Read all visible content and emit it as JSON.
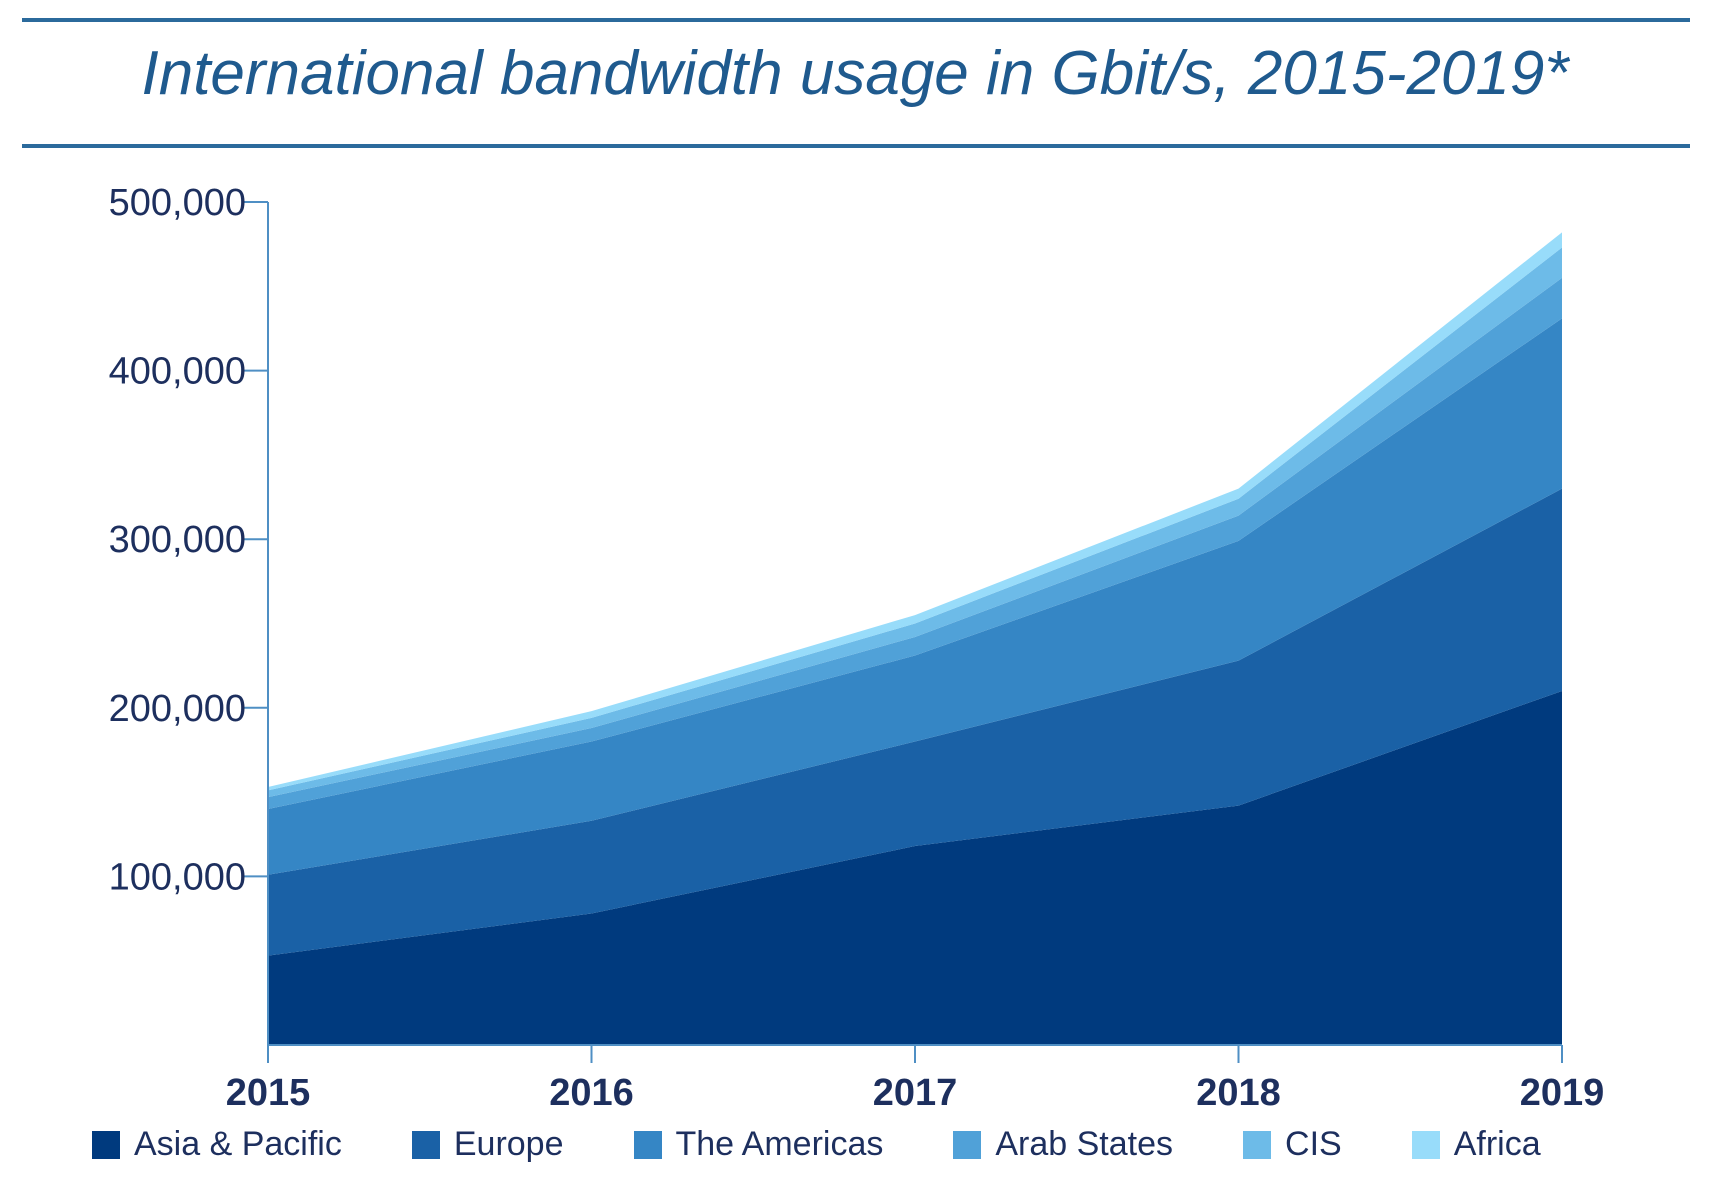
{
  "title": "International bandwidth usage in Gbit/s, 2015-2019*",
  "chart_data": {
    "type": "area",
    "stacked": true,
    "title": "International bandwidth usage in Gbit/s, 2015-2019*",
    "xlabel": "",
    "ylabel": "",
    "categories": [
      "2015",
      "2016",
      "2017",
      "2018",
      "2019"
    ],
    "y_ticks": [
      100000,
      200000,
      300000,
      400000,
      500000
    ],
    "y_tick_labels": [
      "100,000",
      "200,000",
      "300,000",
      "400,000",
      "500,000"
    ],
    "ylim": [
      0,
      500000
    ],
    "grid": false,
    "legend_position": "bottom",
    "series": [
      {
        "name": "Asia & Pacific",
        "color": "#003a7e",
        "values": [
          53000,
          78000,
          118000,
          142000,
          210000
        ]
      },
      {
        "name": "Europe",
        "color": "#1a61a6",
        "values": [
          48000,
          55000,
          62000,
          86000,
          120000
        ]
      },
      {
        "name": "The Americas",
        "color": "#3586c5",
        "values": [
          39000,
          47000,
          51000,
          71000,
          101000
        ]
      },
      {
        "name": "Arab States",
        "color": "#50a1d8",
        "values": [
          7000,
          8000,
          11000,
          15000,
          24000
        ]
      },
      {
        "name": "CIS",
        "color": "#6dbbe8",
        "values": [
          4000,
          6000,
          8000,
          10000,
          18000
        ]
      },
      {
        "name": "Africa",
        "color": "#98dcfa",
        "values": [
          2000,
          4000,
          5000,
          6000,
          9000
        ]
      }
    ]
  }
}
